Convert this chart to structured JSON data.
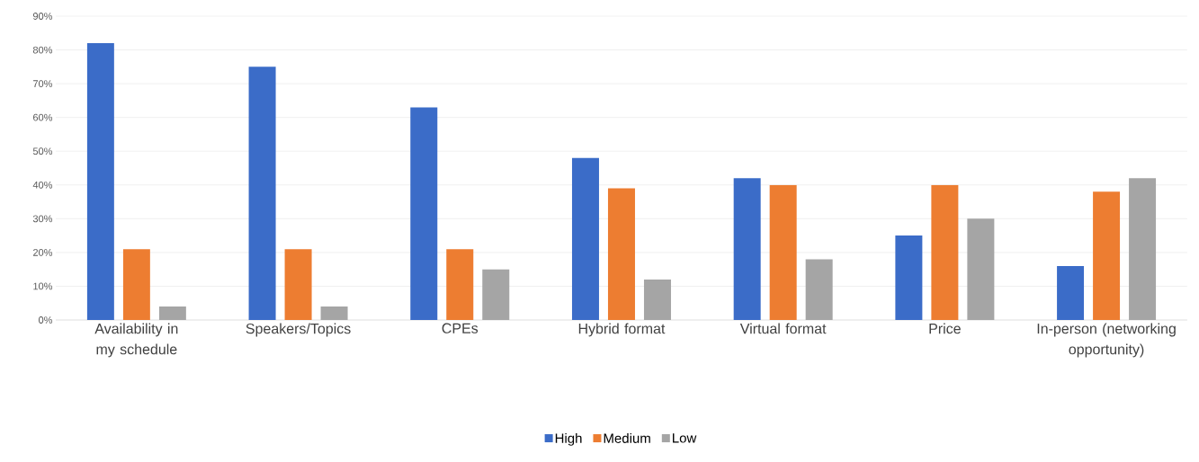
{
  "chart_data": {
    "type": "bar",
    "categories": [
      "Availability in my schedule",
      "Speakers/Topics",
      "CPEs",
      "Hybrid format",
      "Virtual format",
      "Price",
      "In-person (networking opportunity)"
    ],
    "series": [
      {
        "name": "High",
        "color": "#3b6cc8",
        "values": [
          82,
          75,
          63,
          48,
          42,
          25,
          16
        ]
      },
      {
        "name": "Medium",
        "color": "#ed7d31",
        "values": [
          21,
          21,
          21,
          39,
          40,
          40,
          38
        ]
      },
      {
        "name": "Low",
        "color": "#a5a5a5",
        "values": [
          4,
          4,
          15,
          12,
          18,
          30,
          42
        ]
      }
    ],
    "ylim": [
      0,
      90
    ],
    "yticks": [
      {
        "value": 0,
        "label": "0%"
      },
      {
        "value": 10,
        "label": "10%"
      },
      {
        "value": 20,
        "label": "20%"
      },
      {
        "value": 30,
        "label": "30%"
      },
      {
        "value": 40,
        "label": "40%"
      },
      {
        "value": 50,
        "label": "50%"
      },
      {
        "value": 60,
        "label": "60%"
      },
      {
        "value": 70,
        "label": "70%"
      },
      {
        "value": 80,
        "label": "80%"
      },
      {
        "value": 90,
        "label": "90%"
      }
    ],
    "grid": "y",
    "legend": "bottom"
  }
}
